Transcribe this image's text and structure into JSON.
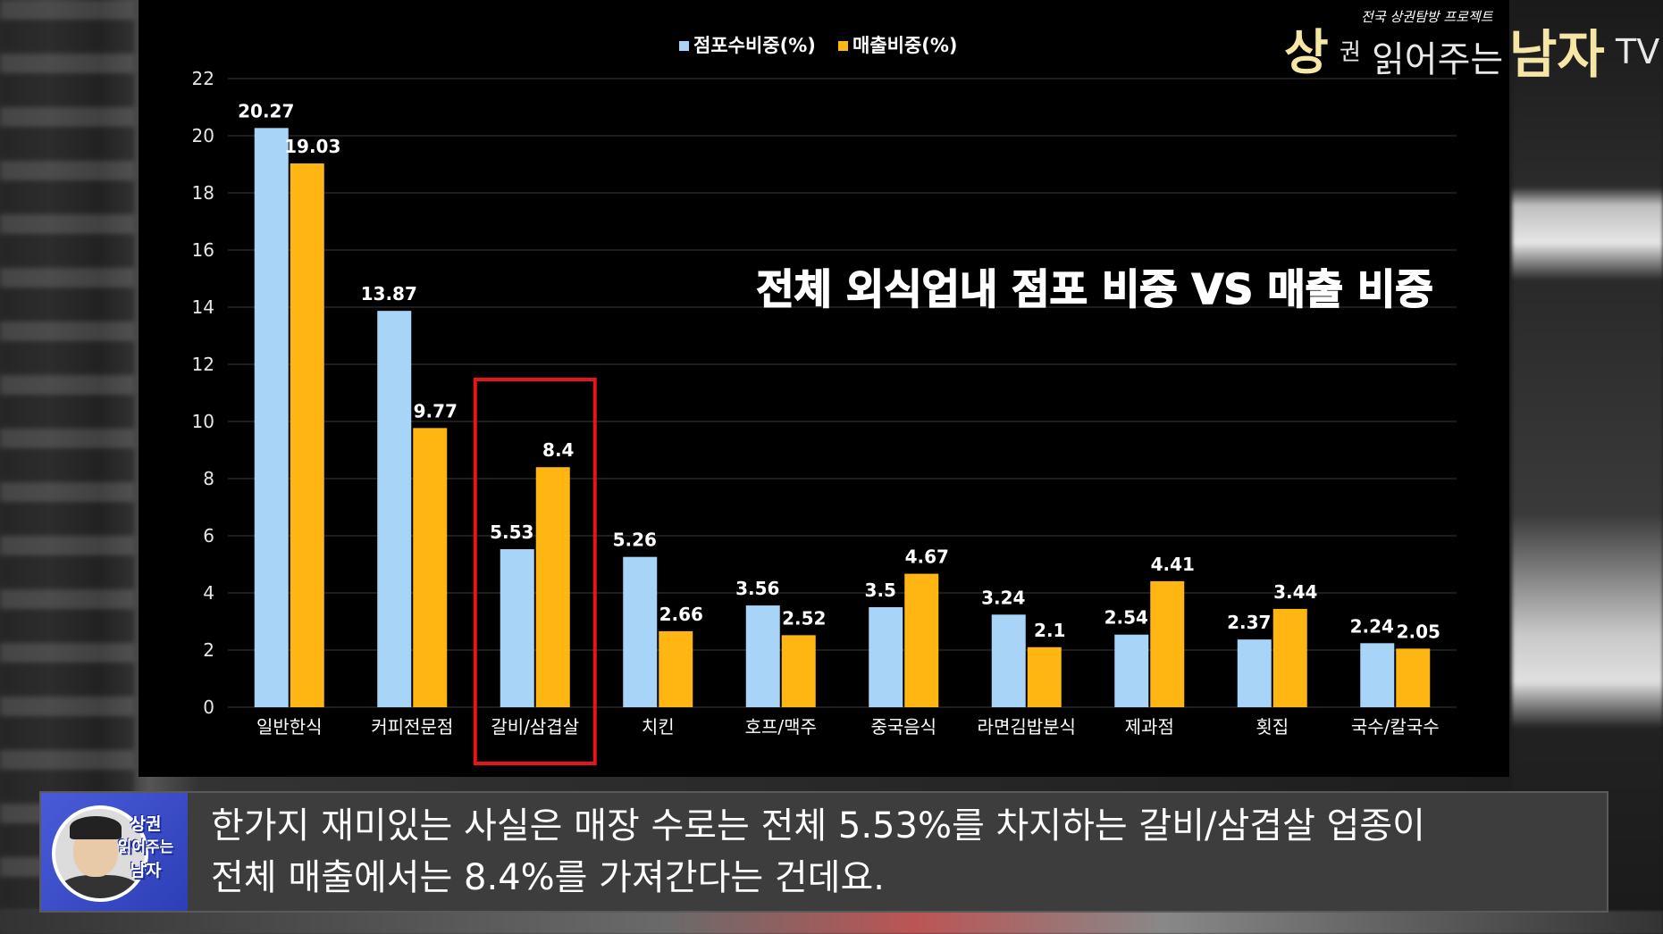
{
  "chart_data": {
    "type": "bar",
    "title": "전체 외식업내 점포 비중 VS 매출 비중",
    "categories": [
      "일반한식",
      "커피전문점",
      "갈비/삼겹살",
      "치킨",
      "호프/맥주",
      "중국음식",
      "라면김밥분식",
      "제과점",
      "횟집",
      "국수/칼국수"
    ],
    "series": [
      {
        "name": "점포수비중(%)",
        "color": "#a8d4f7",
        "values": [
          20.27,
          13.87,
          5.53,
          5.26,
          3.56,
          3.5,
          3.24,
          2.54,
          2.37,
          2.24
        ],
        "labels": [
          "20.27",
          "13.87",
          "5.53",
          "5.26",
          "3.56",
          "3.5",
          "3.24",
          "2.54",
          "2.37",
          "2.24"
        ]
      },
      {
        "name": "매출비중(%)",
        "color": "#ffb612",
        "values": [
          19.03,
          9.77,
          8.4,
          2.66,
          2.52,
          4.67,
          2.1,
          4.41,
          3.44,
          2.05
        ],
        "labels": [
          "19.03",
          "9.77",
          "8.4",
          "2.66",
          "2.52",
          "4.67",
          "2.1",
          "4.41",
          "3.44",
          "2.05"
        ]
      }
    ],
    "ylim": [
      0,
      22
    ],
    "yticks": [
      "0",
      "2",
      "4",
      "6",
      "8",
      "10",
      "12",
      "14",
      "16",
      "18",
      "20",
      "22"
    ],
    "grid": true,
    "legend_position": "top-center",
    "highlight_category": "갈비/삼겹살",
    "highlight_color": "#e8141c"
  },
  "logo": {
    "big1": "상",
    "small1": "권",
    "thin1": "읽어주는",
    "big2": "남자",
    "thin2": "TV",
    "tagline": "전국 상권탐방 프로젝트"
  },
  "caption": {
    "avatar_text": [
      "상권",
      "읽어주는",
      "남자"
    ],
    "line1": "한가지 재미있는 사실은 매장 수로는 전체 5.53%를 차지하는 갈비/삼겹살 업종이",
    "line2": "전체 매출에서는 8.4%를 가져간다는 건데요."
  }
}
